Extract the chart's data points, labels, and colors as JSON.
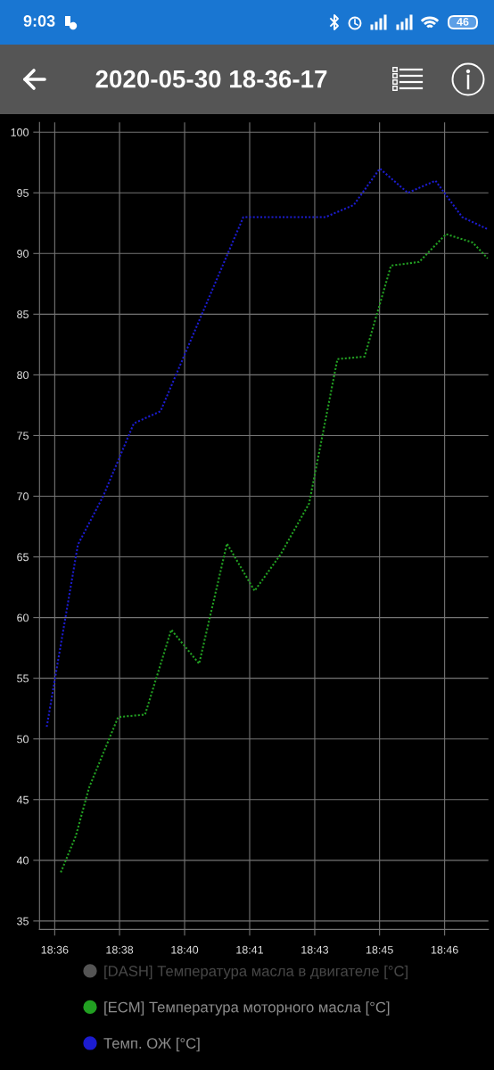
{
  "chart_data": {
    "type": "line",
    "title": "2020-05-30 18-36-17",
    "annotations": [
      "9:03",
      "46"
    ],
    "xlim": [
      18.5991,
      18.7909
    ],
    "xticks": [
      {
        "value": 18.6056,
        "label": "18:36"
      },
      {
        "value": 18.6333,
        "label": "18:38"
      },
      {
        "value": 18.6611,
        "label": "18:40"
      },
      {
        "value": 18.6889,
        "label": "18:41"
      },
      {
        "value": 18.7167,
        "label": "18:43"
      },
      {
        "value": 18.7444,
        "label": "18:45"
      },
      {
        "value": 18.7722,
        "label": "18:46"
      }
    ],
    "ylim": [
      34.3,
      100.8
    ],
    "yticks": [
      35,
      40,
      45,
      50,
      55,
      60,
      65,
      70,
      75,
      80,
      85,
      90,
      95,
      100
    ],
    "grid": true,
    "legend": "bottom",
    "line_style": "dotted",
    "series": [
      {
        "name": "[DASH] Температура масла в двигателе [°C]",
        "color": "#555555"
      },
      {
        "name": "[ECM] Температура моторного масла [°C]",
        "color": "#22a022",
        "x": [
          18.6082,
          18.6146,
          18.6203,
          18.6327,
          18.6442,
          18.6554,
          18.6673,
          18.6792,
          18.691,
          18.7021,
          18.7143,
          18.7264,
          18.738,
          18.7493,
          18.7613,
          18.7728,
          18.7842,
          18.7906
        ],
        "values": [
          39,
          42,
          46,
          51.8,
          52,
          59,
          56.2,
          66.1,
          62.2,
          65.2,
          69.4,
          81.3,
          81.5,
          89,
          89.3,
          91.6,
          90.9,
          89.6
        ]
      },
      {
        "name": "Темп. ОЖ [°C]",
        "color": "#1c1cd0",
        "x": [
          18.6022,
          18.6155,
          18.6263,
          18.6394,
          18.6508,
          18.6862,
          18.7213,
          18.7334,
          18.7445,
          18.7565,
          18.7683,
          18.7797,
          18.7906
        ],
        "values": [
          51,
          66,
          70,
          76,
          77,
          93,
          93,
          94,
          97,
          95,
          96,
          93,
          92
        ]
      }
    ]
  }
}
